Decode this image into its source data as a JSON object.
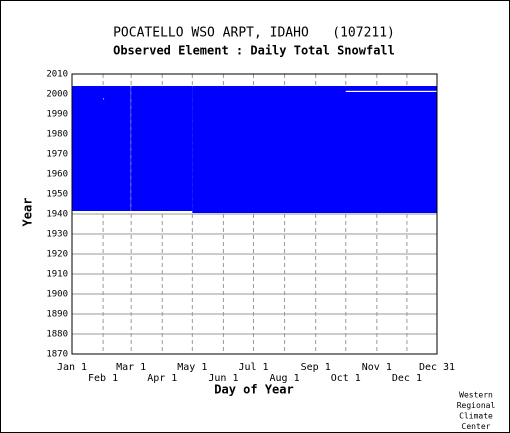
{
  "chart_data": {
    "type": "coverage",
    "title": "POCATELLO WSO ARPT, IDAHO   (107211)",
    "subtitle": "Observed Element : Daily Total Snowfall",
    "x_label": "Day of Year",
    "y_label": "Year",
    "credit": [
      "Western",
      "Regional",
      "Climate",
      "Center"
    ],
    "xlim": [
      1,
      365
    ],
    "xticks": [
      {
        "value": 1,
        "label": "Jan 1"
      },
      {
        "value": 32,
        "label": "Feb 1"
      },
      {
        "value": 60,
        "label": "Mar 1"
      },
      {
        "value": 91,
        "label": "Apr 1"
      },
      {
        "value": 121,
        "label": "May 1"
      },
      {
        "value": 152,
        "label": "Jun 1"
      },
      {
        "value": 182,
        "label": "Jul 1"
      },
      {
        "value": 213,
        "label": "Aug 1"
      },
      {
        "value": 244,
        "label": "Sep 1"
      },
      {
        "value": 274,
        "label": "Oct 1"
      },
      {
        "value": 305,
        "label": "Nov 1"
      },
      {
        "value": 335,
        "label": "Dec 1"
      },
      {
        "value": 365,
        "label": "Dec 31"
      }
    ],
    "ylim": [
      1870,
      2010
    ],
    "yticks": [
      1870,
      1880,
      1890,
      1900,
      1910,
      1920,
      1930,
      1940,
      1950,
      1960,
      1970,
      1980,
      1990,
      2000,
      2010
    ],
    "grid": true,
    "blocks": {
      "color": "#0000ff",
      "x0": [
        1,
        60,
        121
      ],
      "x1": [
        59.5,
        121,
        365
      ],
      "y0": [
        1941.5,
        1941.5,
        1940.5
      ],
      "y1": [
        2004,
        2004,
        2004
      ]
    },
    "gaps": {
      "color": "#ffffff",
      "x0": [
        274,
        32
      ],
      "x1": [
        365,
        33
      ],
      "y0": [
        2001,
        1997.3
      ],
      "y1": [
        2001.6,
        1997.8
      ]
    }
  }
}
